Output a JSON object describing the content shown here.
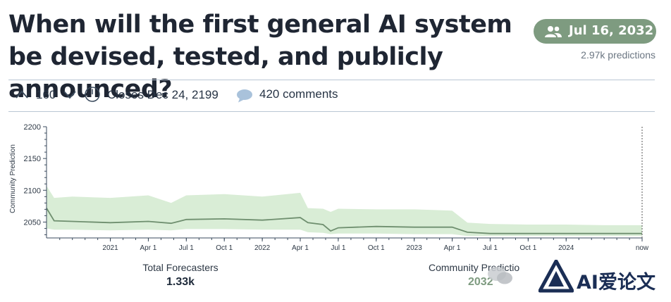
{
  "question": {
    "title": "When will the first general AI system be devised, tested, and publicly announced?"
  },
  "prediction": {
    "value": "Jul 16, 2032",
    "count_label": "2.97k predictions",
    "pill_color": "#7e9b80"
  },
  "meta": {
    "votes": "160",
    "closes": "Closes Dec 24, 2199",
    "comments": "420 comments"
  },
  "chart_data": {
    "type": "line",
    "ylabel": "Community Prediction",
    "y_ticks": [
      "2200",
      "2150",
      "2100",
      "2050"
    ],
    "x_ticks": [
      "2021",
      "Apr 1",
      "Jul 1",
      "Oct 1",
      "2022",
      "Apr 1",
      "Jul 1",
      "Oct 1",
      "2023",
      "Apr 1",
      "Jul 1",
      "Oct 1",
      "2024",
      "now"
    ],
    "ylim": [
      2025,
      2200
    ],
    "series": [
      {
        "x": [
          2020.58,
          2020.63,
          2020.75,
          2021.0,
          2021.25,
          2021.4,
          2021.5,
          2021.75,
          2022.0,
          2022.25,
          2022.3,
          2022.4,
          2022.45,
          2022.5,
          2022.75,
          2023.0,
          2023.25,
          2023.35,
          2023.5,
          2023.75,
          2024.0,
          2024.25,
          2024.5
        ],
        "y": [
          2072,
          2052,
          2051,
          2049,
          2051,
          2048,
          2054,
          2055,
          2053,
          2057,
          2049,
          2046,
          2036,
          2041,
          2043,
          2042,
          2042,
          2034,
          2032,
          2032,
          2032,
          2032,
          2032
        ],
        "upper": [
          2107,
          2088,
          2090,
          2088,
          2092,
          2080,
          2092,
          2094,
          2090,
          2096,
          2072,
          2071,
          2066,
          2071,
          2070,
          2070,
          2068,
          2049,
          2047,
          2046,
          2046,
          2045,
          2045
        ],
        "lower": [
          2040,
          2038,
          2038,
          2037,
          2038,
          2037,
          2039,
          2039,
          2038,
          2038,
          2034,
          2033,
          2031,
          2032,
          2032,
          2031,
          2031,
          2028,
          2028,
          2028,
          2028,
          2028,
          2028
        ]
      }
    ],
    "line_color": "#6f8f6f",
    "band_color": "#d9edd6",
    "grid": false
  },
  "stats": {
    "forecasters_label": "Total Forecasters",
    "forecasters_value": "1.33k",
    "community_label": "Community Predictio",
    "community_value": "2032"
  },
  "watermark": {
    "text": "AI爱论文"
  }
}
